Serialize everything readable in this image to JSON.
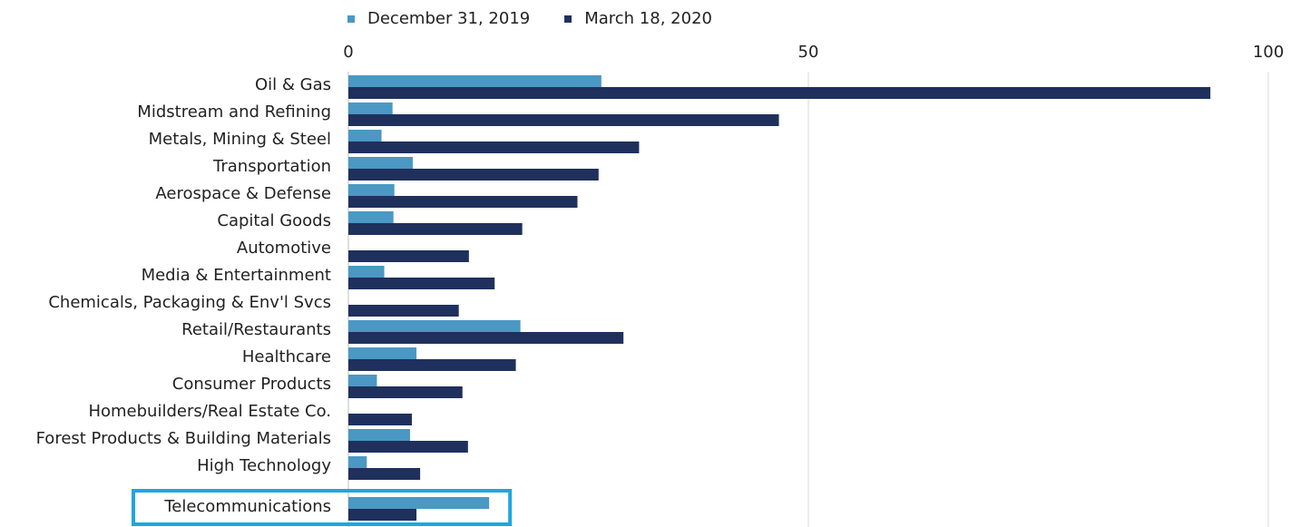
{
  "chart_data": {
    "type": "bar",
    "orientation": "horizontal",
    "categories": [
      "Oil & Gas",
      "Midstream and Refining",
      "Metals, Mining & Steel",
      "Transportation",
      "Aerospace & Defense",
      "Capital Goods",
      "Automotive",
      "Media & Entertainment",
      "Chemicals, Packaging & Env'l Svcs",
      "Retail/Restaurants",
      "Healthcare",
      "Consumer Products",
      "Homebuilders/Real Estate Co.",
      "Forest Products & Building Materials",
      "High Technology",
      "Telecommunications"
    ],
    "series": [
      {
        "name": "December 31, 2019",
        "color": "#4a98c3",
        "values": [
          27.5,
          4.8,
          3.6,
          7.0,
          5.0,
          4.9,
          0,
          3.9,
          0,
          18.7,
          7.4,
          3.1,
          0,
          6.7,
          2.0,
          15.3
        ]
      },
      {
        "name": "March 18, 2020",
        "color": "#1f305d",
        "values": [
          93.7,
          46.8,
          31.6,
          27.2,
          24.9,
          18.9,
          13.1,
          15.9,
          12.0,
          29.9,
          18.2,
          12.4,
          6.9,
          13.0,
          7.8,
          7.4
        ]
      }
    ],
    "xlim": [
      0,
      100
    ],
    "xticks": [
      0,
      50,
      100
    ],
    "grid": true,
    "legend_position": "top",
    "highlighted_category": "Telecommunications",
    "highlight_color": "#1ea6e0"
  }
}
